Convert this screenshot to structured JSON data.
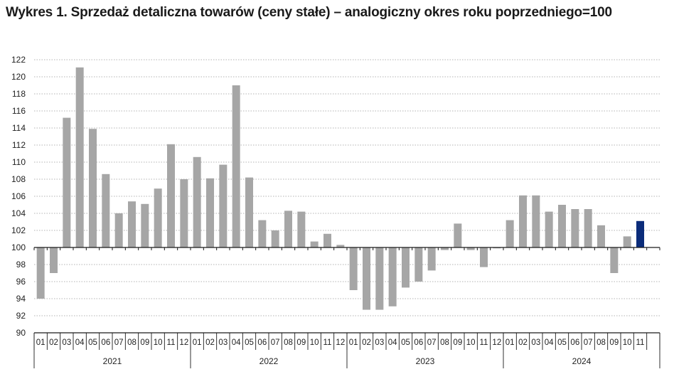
{
  "chart_data": {
    "type": "bar",
    "title": "Wykres 1. Sprzedaż detaliczna towarów (ceny stałe) – analogiczny okres roku poprzedniego=100",
    "xlabel": "",
    "ylabel": "",
    "baseline": 100,
    "ylim": [
      90,
      122
    ],
    "yticks": [
      "90",
      "92",
      "94",
      "96",
      "98",
      "100",
      "102",
      "104",
      "106",
      "108",
      "110",
      "112",
      "114",
      "116",
      "118",
      "120",
      "122"
    ],
    "grid": true,
    "years": [
      "2021",
      "2022",
      "2023",
      "2024"
    ],
    "categories": [
      "01",
      "02",
      "03",
      "04",
      "05",
      "06",
      "07",
      "08",
      "09",
      "10",
      "11",
      "12",
      "01",
      "02",
      "03",
      "04",
      "05",
      "06",
      "07",
      "08",
      "09",
      "10",
      "11",
      "12",
      "01",
      "02",
      "03",
      "04",
      "05",
      "06",
      "07",
      "08",
      "09",
      "10",
      "11",
      "12",
      "01",
      "02",
      "03",
      "04",
      "05",
      "06",
      "07",
      "08",
      "09",
      "10",
      "11"
    ],
    "values": [
      94.0,
      97.0,
      115.2,
      121.1,
      113.9,
      108.6,
      104.0,
      105.4,
      105.1,
      106.9,
      112.1,
      108.0,
      110.6,
      108.1,
      109.7,
      119.0,
      108.2,
      103.2,
      102.0,
      104.3,
      104.2,
      100.7,
      101.6,
      100.3,
      95.0,
      92.7,
      92.7,
      93.1,
      95.3,
      96.0,
      97.3,
      99.7,
      102.8,
      99.7,
      97.7,
      99.9,
      103.2,
      106.1,
      106.1,
      104.2,
      105.0,
      104.5,
      104.5,
      102.6,
      97.0,
      101.3,
      103.1
    ],
    "colors": {
      "bar": "#a6a6a6",
      "highlight": "#0b2c7a",
      "grid": "#9a9a9a",
      "axis": "#1a1a1a"
    },
    "highlight_last": true
  }
}
